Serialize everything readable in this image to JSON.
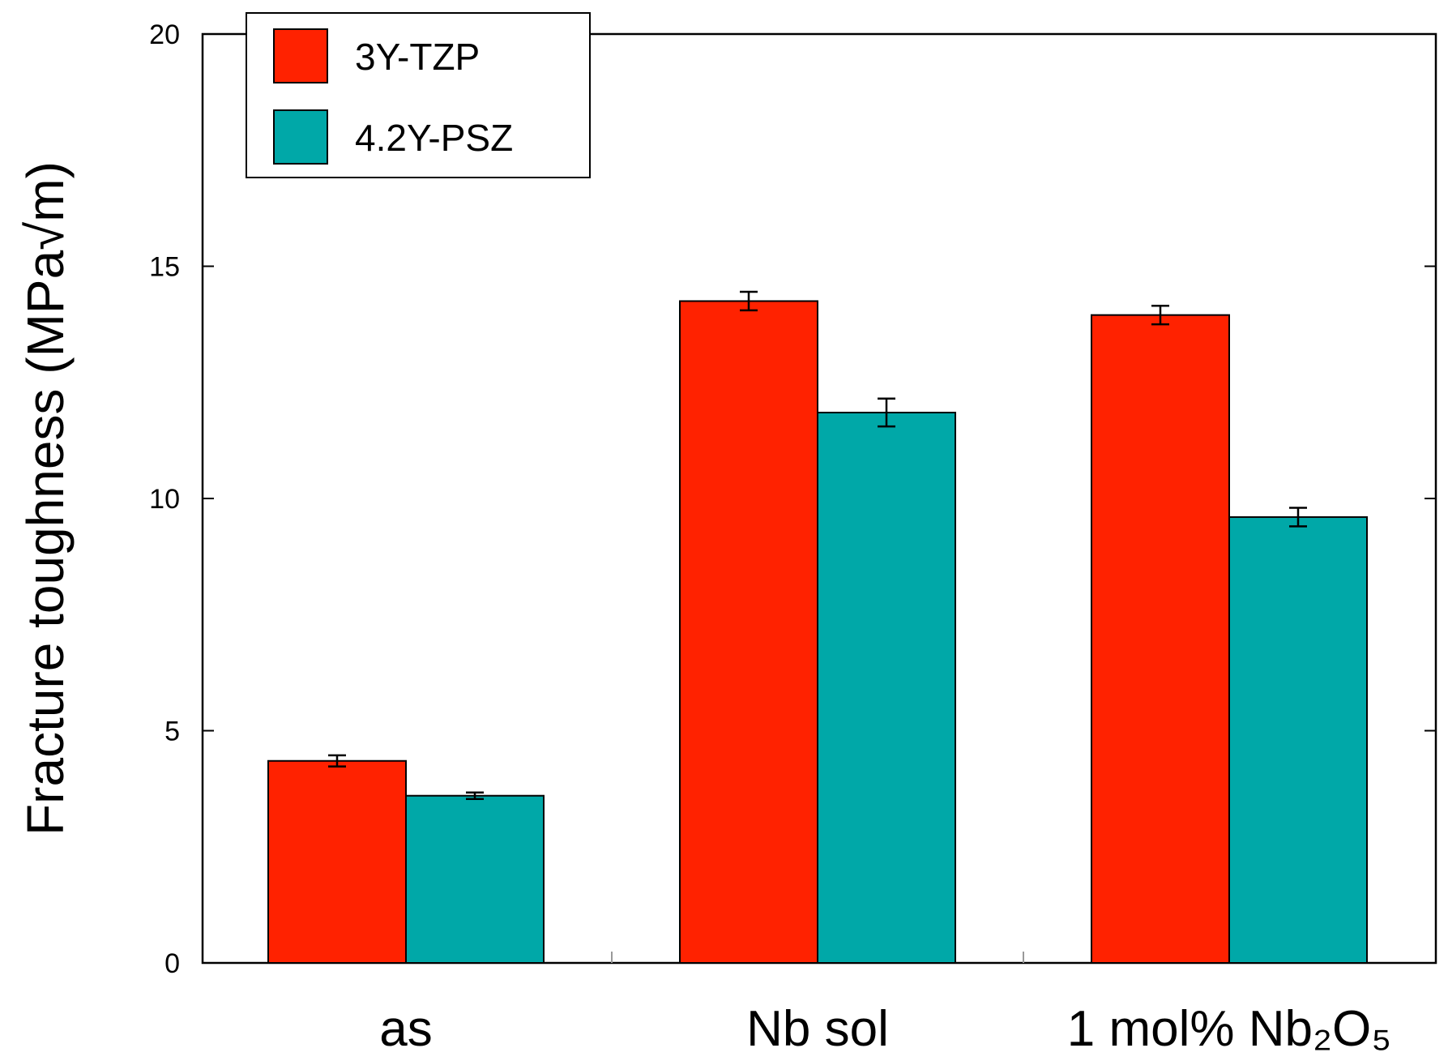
{
  "chart_data": {
    "type": "bar",
    "title": "",
    "xlabel": "",
    "ylabel": "Fracture toughness  (MPa√m)",
    "ylim": [
      0,
      20
    ],
    "yticks": [
      0,
      5,
      10,
      15,
      20
    ],
    "categories": [
      "as",
      "Nb sol",
      "1 mol% Nb₂O₅"
    ],
    "series": [
      {
        "name": "3Y-TZP",
        "color": "#ff2200",
        "values": [
          4.35,
          14.25,
          13.95
        ],
        "errors": [
          0.12,
          0.2,
          0.2
        ]
      },
      {
        "name": "4.2Y-PSZ",
        "color": "#00a8a8",
        "values": [
          3.6,
          11.85,
          9.6
        ],
        "errors": [
          0.07,
          0.3,
          0.2
        ]
      }
    ],
    "grid": false,
    "legend_position": "top-left"
  }
}
